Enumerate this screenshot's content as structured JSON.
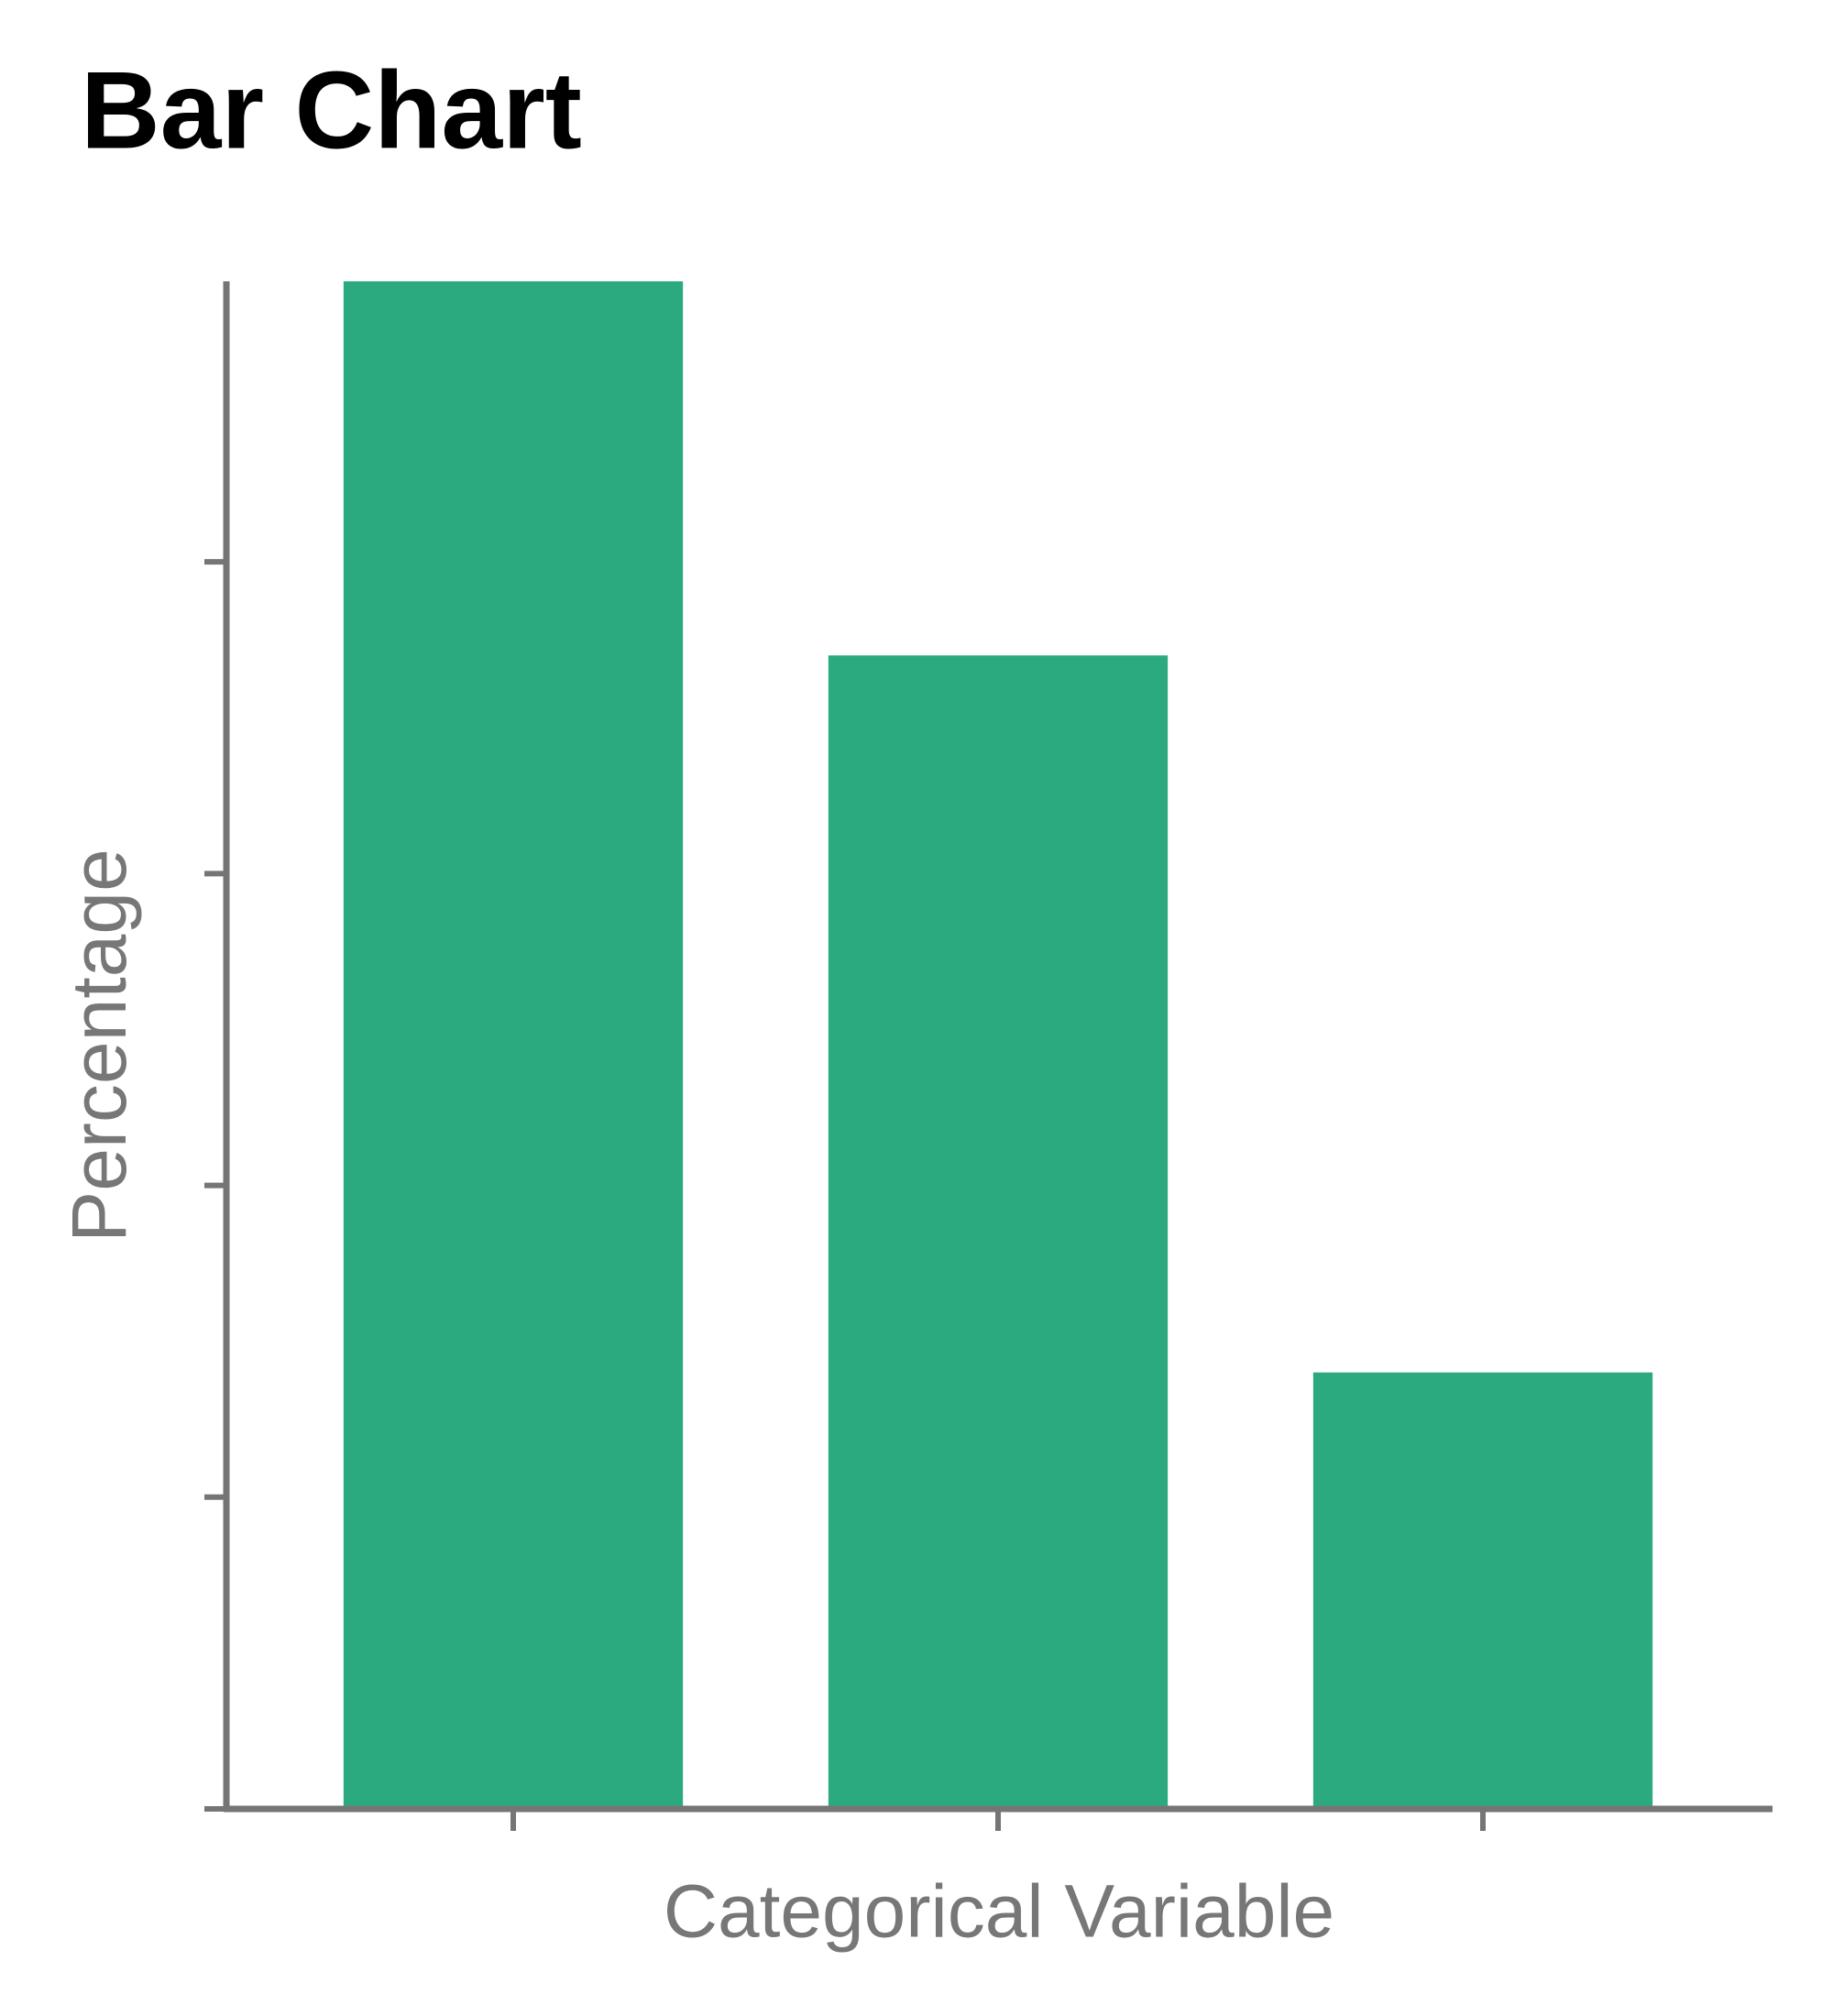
{
  "chart_data": {
    "type": "bar",
    "title": "Bar Chart",
    "x_label": "Categorical Variable",
    "y_label": "Percentage",
    "categories": [
      null,
      null,
      null
    ],
    "values": [
      49,
      37,
      14
    ],
    "color": "#2aaa7e",
    "ylim": [
      0,
      49
    ],
    "yticks": [
      0,
      10,
      20,
      30,
      40
    ],
    "grid": false
  }
}
